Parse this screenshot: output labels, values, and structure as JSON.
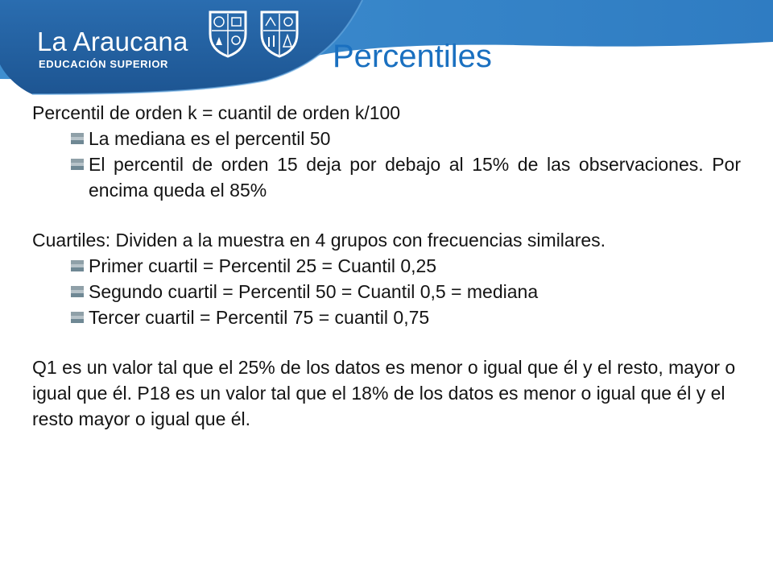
{
  "header": {
    "brand_name": "La Araucana",
    "brand_subtitle": "EDUCACIÓN SUPERIOR",
    "title": "Percentiles",
    "colors": {
      "banner_dark": "#1f5b98",
      "banner_light": "#3f8fd0",
      "title": "#1a70c0"
    },
    "crests": [
      "crest-shield-icon",
      "crest-shield-icon"
    ]
  },
  "content": {
    "block1": {
      "heading": "Percentil de orden k = cuantil de orden k/100",
      "bullets": [
        "La mediana es el percentil 50",
        "El percentil de orden 15 deja por debajo al 15% de las observaciones. Por encima queda el 85%"
      ]
    },
    "block2": {
      "heading": "Cuartiles: Dividen a la muestra en 4 grupos con frecuencias similares.",
      "bullets": [
        "Primer cuartil = Percentil 25 = Cuantil 0,25",
        "Segundo cuartil = Percentil 50 = Cuantil 0,5 = mediana",
        "Tercer cuartil = Percentil 75 = cuantil 0,75"
      ]
    },
    "block3": {
      "paragraph": "Q1 es un valor tal que el 25% de los datos es menor o igual que él y el resto, mayor o igual que él. P18 es un valor tal que el 18% de los datos es menor o igual que él y el resto mayor o igual que él."
    }
  }
}
